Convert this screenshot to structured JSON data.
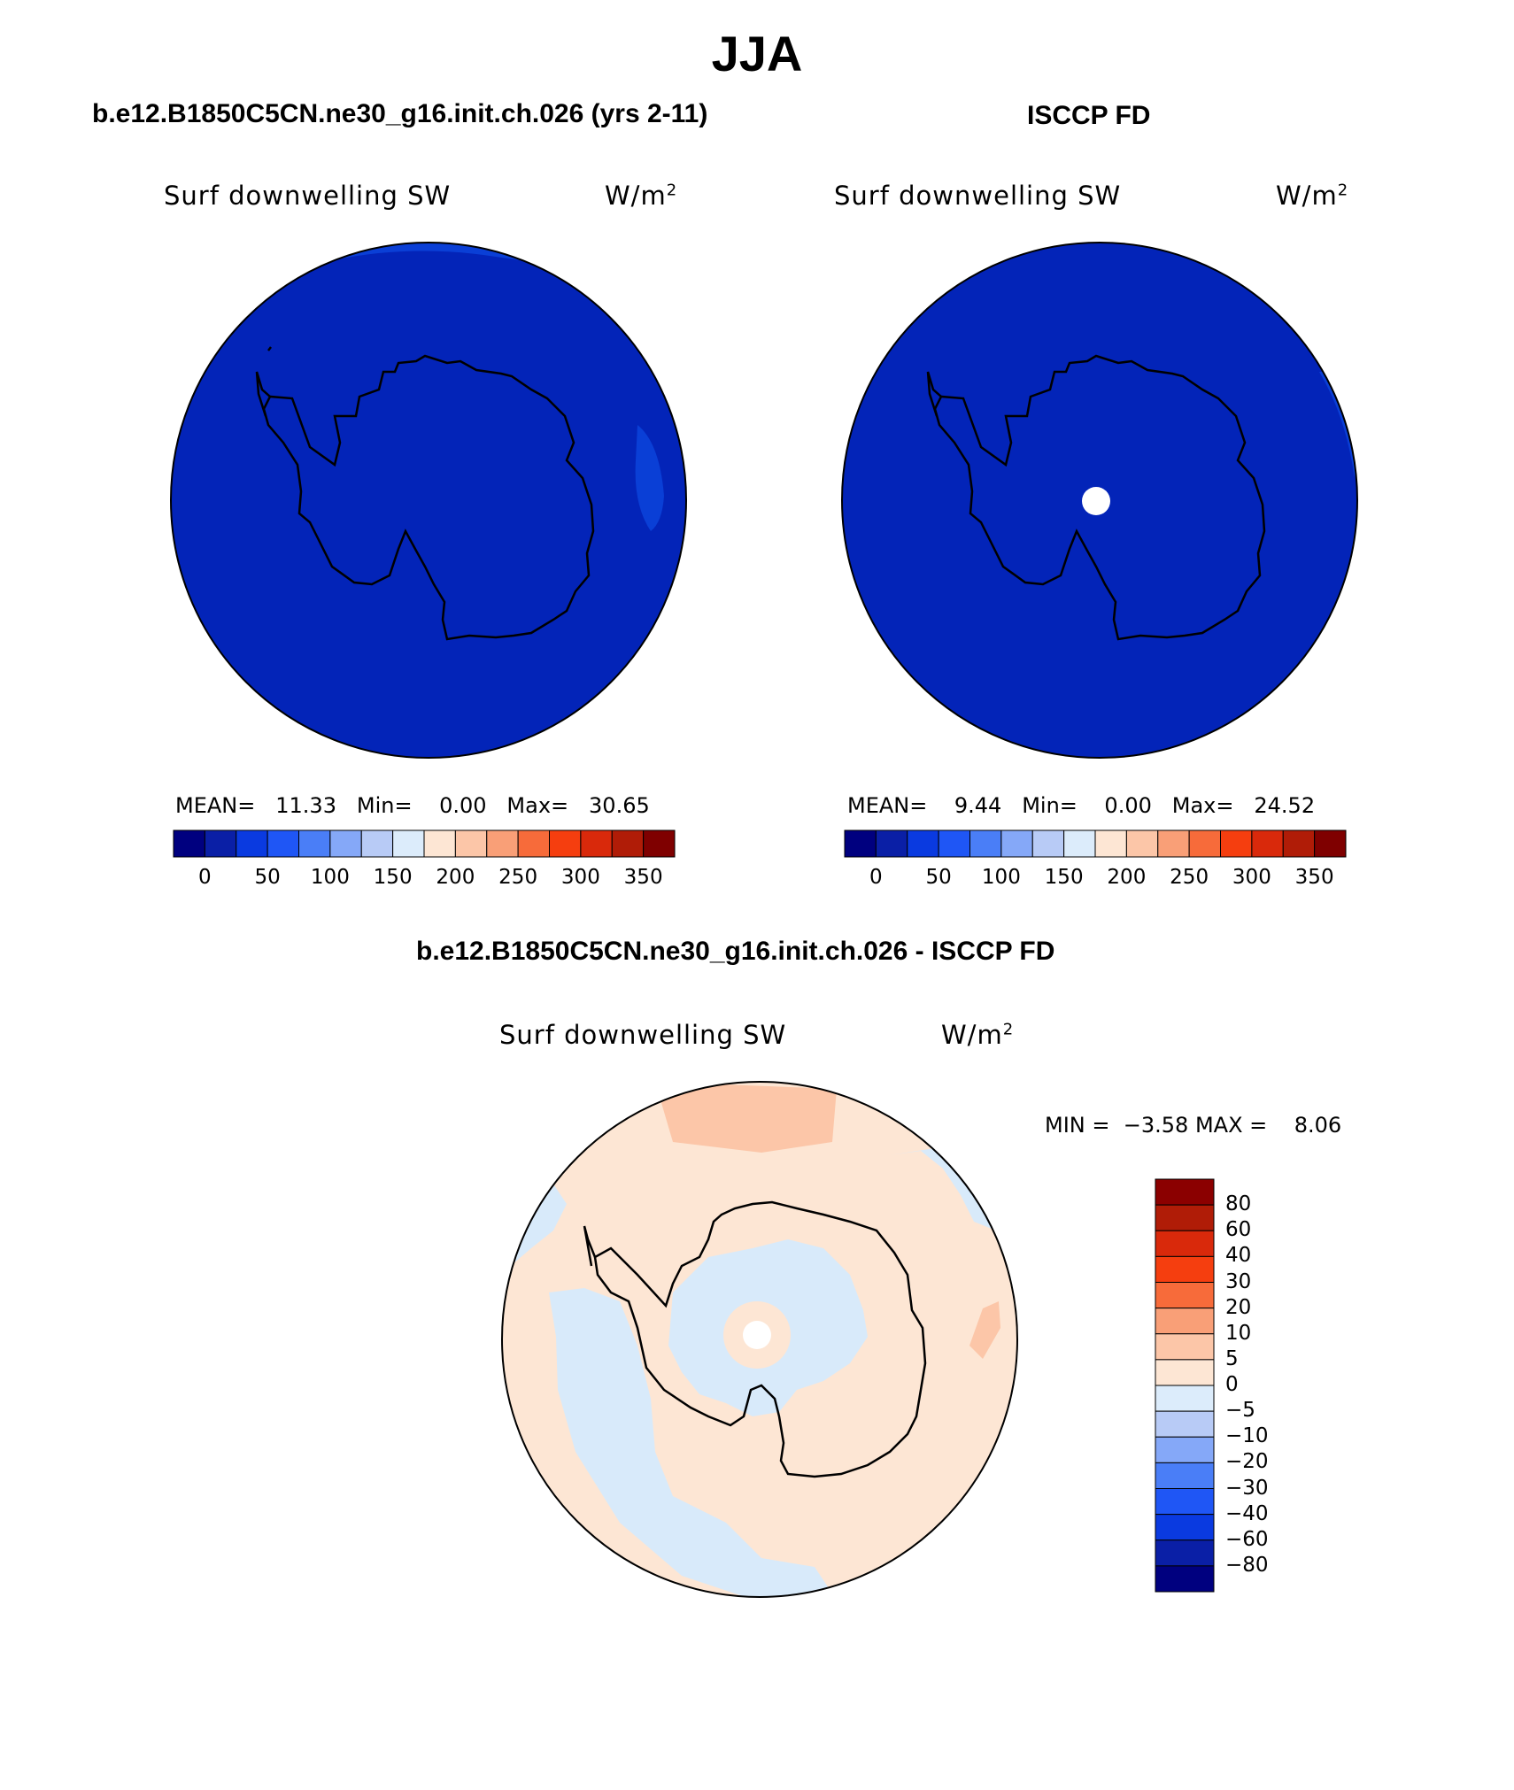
{
  "title": "JJA",
  "colors": {
    "ocean_blue": "#0324b8",
    "ocean_light_blue": "#0a3fd6",
    "diff_peach": "#fde6d4",
    "diff_light_blue": "#d8eafa",
    "diff_salmon": "#fcc6a8",
    "coast": "#000000",
    "missing": "#ffffff"
  },
  "left_panel": {
    "case_title": "b.e12.B1850C5CN.ne30_g16.init.ch.026 (yrs 2-11)",
    "variable_label": "Surf downwelling SW",
    "units_label": "W/m",
    "units_sup": "2",
    "stats": {
      "mean_label": "MEAN=",
      "mean": "11.33",
      "min_label": "Min=",
      "min": "0.00",
      "max_label": "Max=",
      "max": "30.65"
    }
  },
  "right_panel": {
    "case_title": "ISCCP FD",
    "variable_label": "Surf downwelling SW",
    "units_label": "W/m",
    "units_sup": "2",
    "stats": {
      "mean_label": "MEAN=",
      "mean": "9.44",
      "min_label": "Min=",
      "min": "0.00",
      "max_label": "Max=",
      "max": "24.52"
    }
  },
  "abs_colorbar": {
    "colors": [
      "#00007f",
      "#0a1fa6",
      "#0a3ae0",
      "#1f56f5",
      "#4a7ef7",
      "#85a8f8",
      "#b8cbf6",
      "#dcecfb",
      "#fde6d4",
      "#fcc6a8",
      "#f99f77",
      "#f76b3a",
      "#f53e0f",
      "#d9290b",
      "#b01c07",
      "#7f0000"
    ],
    "tick_labels": [
      "0",
      "50",
      "100",
      "150",
      "200",
      "250",
      "300",
      "350"
    ]
  },
  "diff_panel": {
    "case_title": "b.e12.B1850C5CN.ne30_g16.init.ch.026 - ISCCP FD",
    "variable_label": "Surf downwelling SW",
    "units_label": "W/m",
    "units_sup": "2",
    "min_label": "MIN =",
    "min": "−3.58",
    "max_label": "MAX =",
    "max": "8.06"
  },
  "diff_colorbar": {
    "colors_top_to_bottom": [
      "#8b0000",
      "#b01c07",
      "#d9290b",
      "#f53e0f",
      "#f76b3a",
      "#f99f77",
      "#fcc6a8",
      "#fde6d4",
      "#dcecfb",
      "#b8cbf6",
      "#85a8f8",
      "#4a7ef7",
      "#1f56f5",
      "#0a3ae0",
      "#0a1fa6",
      "#00007f"
    ],
    "tick_labels_top_to_bottom": [
      "80",
      "60",
      "40",
      "30",
      "20",
      "10",
      "5",
      "0",
      "−5",
      "−10",
      "−20",
      "−30",
      "−40",
      "−60",
      "−80"
    ]
  }
}
